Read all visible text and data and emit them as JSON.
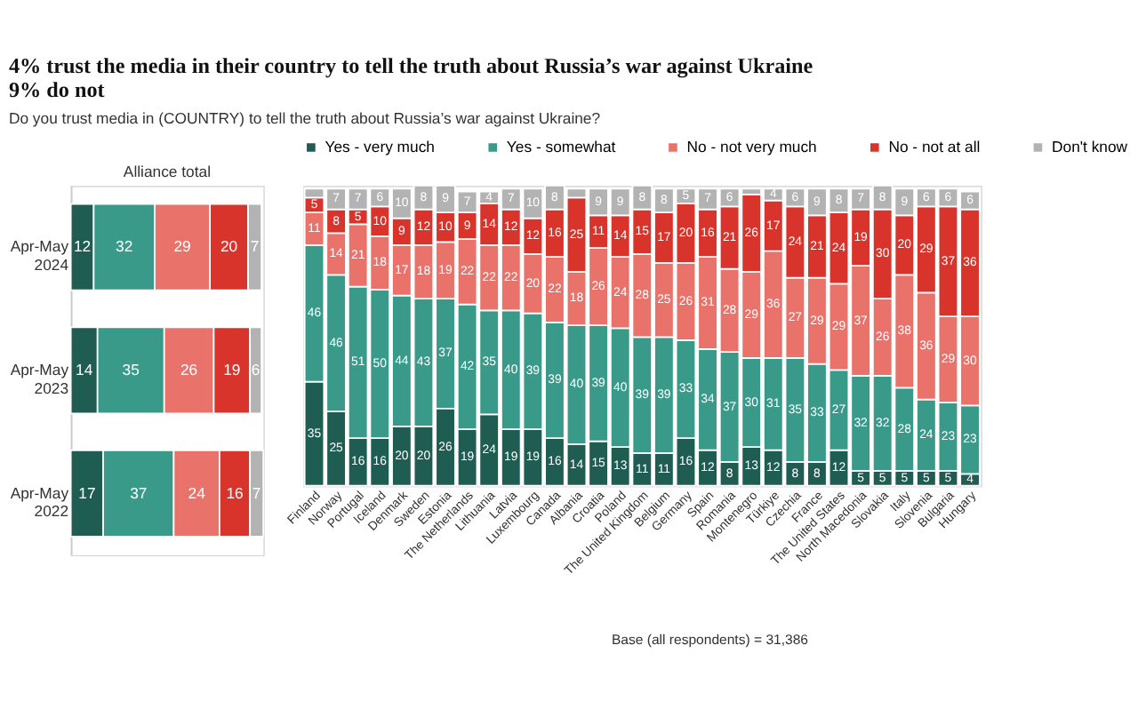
{
  "chart_data": [
    {
      "type": "bar",
      "title": "Alliance total",
      "orientation": "horizontal",
      "stacked": true,
      "data_labels": true,
      "tick_labels": "y",
      "legend": false,
      "categories": [
        "Apr-May 2024",
        "Apr-May 2023",
        "Apr-May 2022"
      ],
      "series": [
        {
          "color": "#1f5c52",
          "values": [
            12,
            14,
            17
          ]
        },
        {
          "color": "#3a9a8a",
          "values": [
            32,
            35,
            37
          ]
        },
        {
          "color": "#e9736b",
          "values": [
            29,
            26,
            24
          ]
        },
        {
          "color": "#d9342b",
          "values": [
            20,
            19,
            16
          ]
        },
        {
          "color": "#b3b3b3",
          "values": [
            7,
            6,
            7
          ]
        }
      ]
    },
    {
      "type": "bar",
      "title": "4% trust the media in their country to tell the truth about Russia’s war against Ukraine\n9% do not",
      "subtitle": "Do you trust media in (COUNTRY) to tell the truth about Russia’s war against Ukraine?",
      "stacked": true,
      "data_labels": true,
      "tick_labels": "x",
      "legend": "top",
      "annotations": [
        "Base (all respondents) = 31,386"
      ],
      "categories": [
        "Finland",
        "Norway",
        "Portugal",
        "Iceland",
        "Denmark",
        "Sweden",
        "Estonia",
        "The Netherlands",
        "Lithuania",
        "Latvia",
        "Luxembourg",
        "Canada",
        "Albania",
        "Croatia",
        "Poland",
        "The United Kingdom",
        "Belgium",
        "Germany",
        "Spain",
        "Romania",
        "Montenegro",
        "Türkiye",
        "Czechia",
        "France",
        "The United States",
        "North Macedonia",
        "Slovakia",
        "Italy",
        "Slovenia",
        "Bulgaria",
        "Hungary"
      ],
      "series": [
        {
          "name": "Yes - very much",
          "color": "#1f5c52",
          "values": [
            35,
            25,
            16,
            16,
            20,
            20,
            26,
            19,
            24,
            19,
            19,
            16,
            14,
            15,
            13,
            11,
            11,
            16,
            12,
            8,
            13,
            12,
            8,
            8,
            12,
            5,
            5,
            5,
            5,
            5,
            4
          ]
        },
        {
          "name": "Yes - somewhat",
          "color": "#3a9a8a",
          "values": [
            46,
            46,
            51,
            50,
            44,
            43,
            37,
            42,
            35,
            40,
            39,
            39,
            40,
            39,
            40,
            39,
            39,
            33,
            34,
            37,
            30,
            31,
            35,
            33,
            27,
            32,
            32,
            28,
            24,
            23,
            23
          ]
        },
        {
          "name": "No - not very much",
          "color": "#e9736b",
          "values": [
            11,
            14,
            21,
            18,
            17,
            18,
            19,
            22,
            22,
            22,
            20,
            22,
            18,
            26,
            24,
            28,
            25,
            26,
            31,
            28,
            29,
            36,
            27,
            29,
            29,
            37,
            26,
            38,
            36,
            29,
            30
          ]
        },
        {
          "name": "No - not at all",
          "color": "#d9342b",
          "values": [
            5,
            8,
            5,
            10,
            9,
            12,
            10,
            9,
            14,
            12,
            12,
            16,
            25,
            11,
            14,
            15,
            17,
            20,
            16,
            21,
            26,
            17,
            24,
            21,
            24,
            19,
            30,
            20,
            29,
            37,
            36
          ]
        },
        {
          "name": "Don't know",
          "color": "#b3b3b3",
          "values": [
            3,
            7,
            7,
            6,
            10,
            8,
            9,
            7,
            4,
            7,
            10,
            8,
            3,
            9,
            9,
            8,
            8,
            5,
            7,
            6,
            2,
            4,
            6,
            9,
            8,
            7,
            8,
            9,
            6,
            6,
            6
          ],
          "value_labels": [
            null,
            "7",
            "7",
            "6",
            "10",
            "8",
            "9",
            "7",
            "4",
            "7",
            "10",
            "8",
            null,
            "9",
            "9",
            "8",
            "8",
            "5",
            "7",
            "6",
            null,
            "4",
            "6",
            "9",
            "8",
            "7",
            "8",
            "9",
            "6",
            "6",
            "6"
          ]
        }
      ]
    }
  ]
}
